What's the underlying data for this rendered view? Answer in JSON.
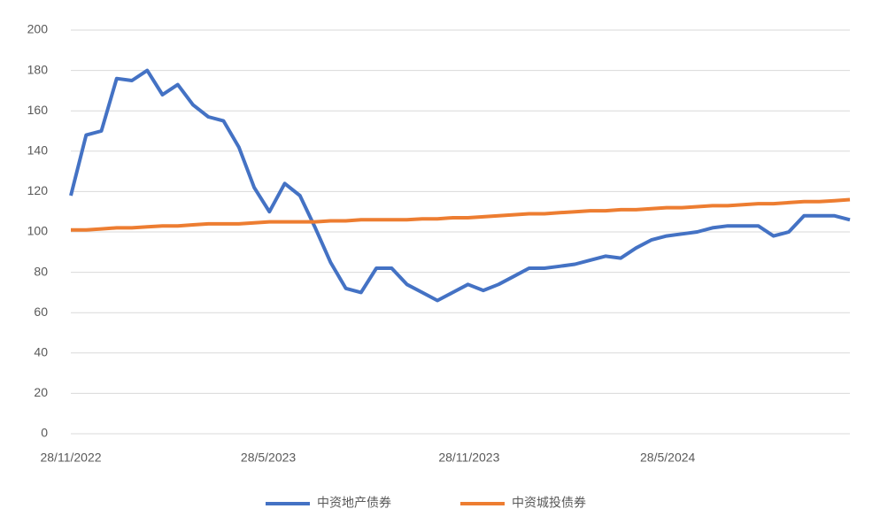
{
  "chart_data": {
    "type": "line",
    "x": [
      "28/11/2022",
      "12/12/2022",
      "26/12/2022",
      "9/1/2023",
      "23/1/2023",
      "6/2/2023",
      "20/2/2023",
      "6/3/2023",
      "20/3/2023",
      "3/4/2023",
      "17/4/2023",
      "1/5/2023",
      "15/5/2023",
      "29/5/2023",
      "12/6/2023",
      "26/6/2023",
      "10/7/2023",
      "24/7/2023",
      "7/8/2023",
      "21/8/2023",
      "4/9/2023",
      "18/9/2023",
      "2/10/2023",
      "16/10/2023",
      "30/10/2023",
      "13/11/2023",
      "27/11/2023",
      "11/12/2023",
      "25/12/2023",
      "8/1/2024",
      "22/1/2024",
      "5/2/2024",
      "19/2/2024",
      "4/3/2024",
      "18/3/2024",
      "1/4/2024",
      "15/4/2024",
      "29/4/2024",
      "13/5/2024",
      "27/5/2024",
      "10/6/2024",
      "24/6/2024",
      "8/7/2024",
      "22/7/2024",
      "5/8/2024",
      "19/8/2024",
      "2/9/2024",
      "16/9/2024",
      "30/9/2024",
      "14/10/2024",
      "28/10/2024",
      "11/11/2024"
    ],
    "series": [
      {
        "name": "中资地产债券",
        "color": "#4472c4",
        "values": [
          118,
          148,
          150,
          176,
          175,
          180,
          168,
          173,
          163,
          157,
          155,
          142,
          122,
          110,
          124,
          118,
          102,
          85,
          72,
          70,
          82,
          82,
          74,
          70,
          66,
          70,
          74,
          71,
          74,
          78,
          82,
          82,
          83,
          84,
          86,
          88,
          87,
          92,
          96,
          98,
          99,
          100,
          102,
          103,
          103,
          103,
          98,
          100,
          108,
          108,
          108,
          106
        ]
      },
      {
        "name": "中资城投债券",
        "color": "#ed7d31",
        "values": [
          101,
          101,
          101.5,
          102,
          102,
          102.5,
          103,
          103,
          103.5,
          104,
          104,
          104,
          104.5,
          105,
          105,
          105,
          105,
          105.5,
          105.5,
          106,
          106,
          106,
          106,
          106.5,
          106.5,
          107,
          107,
          107.5,
          108,
          108.5,
          109,
          109,
          109.5,
          110,
          110.5,
          110.5,
          111,
          111,
          111.5,
          112,
          112,
          112.5,
          113,
          113,
          113.5,
          114,
          114,
          114.5,
          115,
          115,
          115.5,
          116
        ]
      }
    ],
    "xlim": [
      "28/11/2022",
      "11/11/2024"
    ],
    "xticks": [
      "28/11/2022",
      "28/5/2023",
      "28/11/2023",
      "28/5/2024"
    ],
    "ylim": [
      0,
      200
    ],
    "yticks": [
      0,
      20,
      40,
      60,
      80,
      100,
      120,
      140,
      160,
      180,
      200
    ],
    "grid": true,
    "legend": "bottom"
  }
}
